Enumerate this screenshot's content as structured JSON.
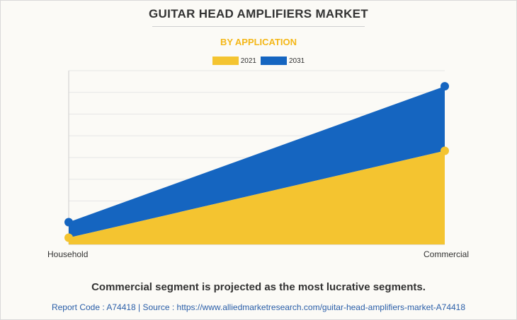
{
  "header": {
    "title": "GUITAR HEAD AMPLIFIERS MARKET",
    "subtitle": "BY APPLICATION"
  },
  "colors": {
    "series_2021": "#f4c430",
    "series_2031": "#1565c0",
    "subtitle": "#f4b718",
    "source_link": "#2a5ea8"
  },
  "chart_data": {
    "type": "area",
    "categories": [
      "Household",
      "Commercial"
    ],
    "series": [
      {
        "name": "2021",
        "values": [
          0.3,
          4.2
        ]
      },
      {
        "name": "2031",
        "values": [
          1.0,
          7.1
        ]
      }
    ],
    "ylim": [
      0,
      7.8
    ],
    "grid": true,
    "legend": "top-center",
    "xlabel": "",
    "ylabel": ""
  },
  "footer": {
    "note": "Commercial segment is projected as the most lucrative segments.",
    "source": "Report Code : A74418  |  Source : https://www.alliedmarketresearch.com/guitar-head-amplifiers-market-A74418"
  }
}
